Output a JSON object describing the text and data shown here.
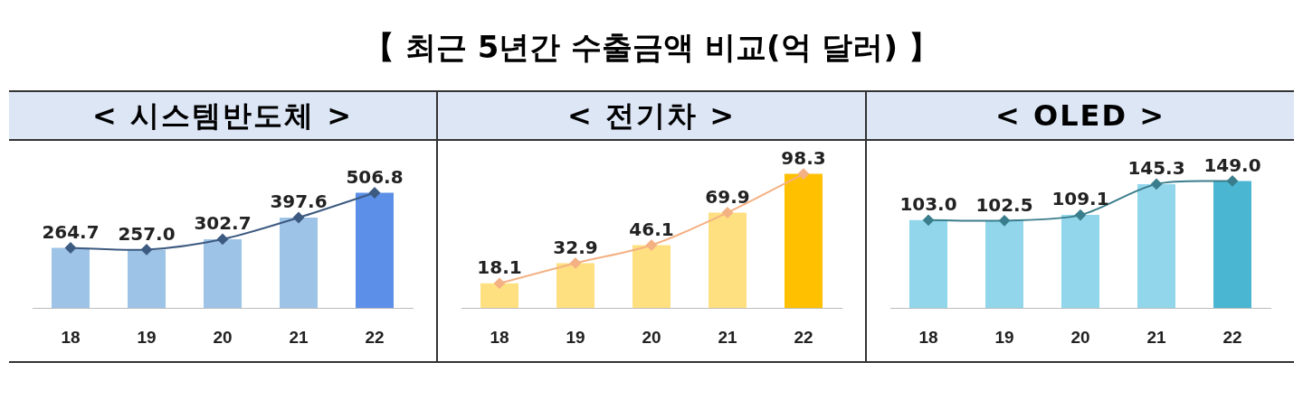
{
  "chart_data": [
    {
      "type": "other",
      "title": "【 최근 5년간 수출금액 비교(억 달러) 】"
    },
    {
      "type": "bar",
      "title": "< 시스템반도체 >",
      "categories": [
        "18",
        "19",
        "20",
        "21",
        "22"
      ],
      "tick_labels": "x",
      "grid": false,
      "legend": false,
      "marker": "diamond",
      "series": [
        {
          "type": "bar",
          "colors": [
            "#9dc3e6",
            "#9dc3e6",
            "#9dc3e6",
            "#9dc3e6",
            "#5b8fe8"
          ],
          "values": [
            264.7,
            257.0,
            302.7,
            397.6,
            506.8
          ],
          "value_labels": [
            "264.7",
            "257.0",
            "302.7",
            "397.6",
            "506.8"
          ]
        },
        {
          "type": "line",
          "color": "#3d5a80",
          "values": [
            264.7,
            257.0,
            302.7,
            397.6,
            506.8
          ]
        }
      ]
    },
    {
      "type": "bar",
      "title": "< 전기차 >",
      "categories": [
        "18",
        "19",
        "20",
        "21",
        "22"
      ],
      "tick_labels": "x",
      "grid": false,
      "legend": false,
      "marker": "diamond",
      "series": [
        {
          "type": "bar",
          "colors": [
            "#ffe080",
            "#ffe080",
            "#ffe080",
            "#ffe080",
            "#ffc000"
          ],
          "values": [
            18.1,
            32.9,
            46.1,
            69.9,
            98.3
          ],
          "value_labels": [
            "18.1",
            "32.9",
            "46.1",
            "69.9",
            "98.3"
          ]
        },
        {
          "type": "line",
          "color": "#f4b183",
          "values": [
            18.1,
            32.9,
            46.1,
            69.9,
            98.3
          ]
        }
      ]
    },
    {
      "type": "bar",
      "title": "< OLED >",
      "categories": [
        "18",
        "19",
        "20",
        "21",
        "22"
      ],
      "tick_labels": "x",
      "grid": false,
      "legend": false,
      "marker": "diamond",
      "series": [
        {
          "type": "bar",
          "colors": [
            "#92d6ec",
            "#92d6ec",
            "#92d6ec",
            "#92d6ec",
            "#4bb6d1"
          ],
          "values": [
            103.0,
            102.5,
            109.1,
            145.3,
            149.0
          ],
          "value_labels": [
            "103.0",
            "102.5",
            "109.1",
            "145.3",
            "149.0"
          ]
        },
        {
          "type": "line",
          "color": "#3a7d8c",
          "values": [
            103.0,
            102.5,
            109.1,
            145.3,
            149.0
          ]
        }
      ]
    }
  ]
}
